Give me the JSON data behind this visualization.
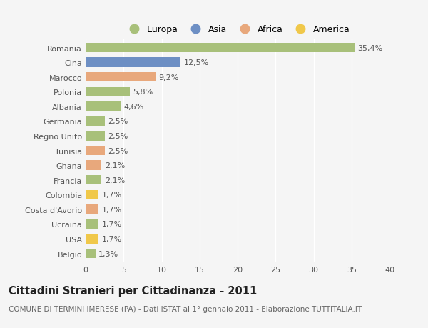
{
  "categories": [
    "Romania",
    "Cina",
    "Marocco",
    "Polonia",
    "Albania",
    "Germania",
    "Regno Unito",
    "Tunisia",
    "Ghana",
    "Francia",
    "Colombia",
    "Costa d'Avorio",
    "Ucraina",
    "USA",
    "Belgio"
  ],
  "values": [
    35.4,
    12.5,
    9.2,
    5.8,
    4.6,
    2.5,
    2.5,
    2.5,
    2.1,
    2.1,
    1.7,
    1.7,
    1.7,
    1.7,
    1.3
  ],
  "labels": [
    "35,4%",
    "12,5%",
    "9,2%",
    "5,8%",
    "4,6%",
    "2,5%",
    "2,5%",
    "2,5%",
    "2,1%",
    "2,1%",
    "1,7%",
    "1,7%",
    "1,7%",
    "1,7%",
    "1,3%"
  ],
  "colors": [
    "#a8c07a",
    "#6d8fc4",
    "#e8a87c",
    "#a8c07a",
    "#a8c07a",
    "#a8c07a",
    "#a8c07a",
    "#e8a87c",
    "#e8a87c",
    "#a8c07a",
    "#f0c84a",
    "#e8a87c",
    "#a8c07a",
    "#f0c84a",
    "#a8c07a"
  ],
  "legend_labels": [
    "Europa",
    "Asia",
    "Africa",
    "America"
  ],
  "legend_colors": [
    "#a8c07a",
    "#6d8fc4",
    "#e8a87c",
    "#f0c84a"
  ],
  "xlim": [
    0,
    40
  ],
  "xticks": [
    0,
    5,
    10,
    15,
    20,
    25,
    30,
    35,
    40
  ],
  "title": "Cittadini Stranieri per Cittadinanza - 2011",
  "subtitle": "COMUNE DI TERMINI IMERESE (PA) - Dati ISTAT al 1° gennaio 2011 - Elaborazione TUTTITALIA.IT",
  "background_color": "#f5f5f5",
  "bar_height": 0.65,
  "grid_color": "#ffffff",
  "label_fontsize": 8,
  "tick_fontsize": 8,
  "title_fontsize": 10.5,
  "subtitle_fontsize": 7.5
}
